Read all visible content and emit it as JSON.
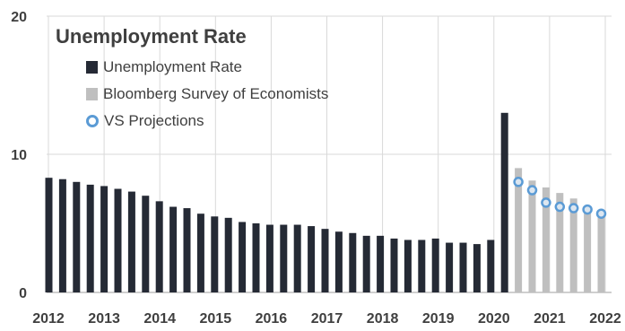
{
  "colors": {
    "unemployment": "#252a35",
    "bloomberg": "#bfbfbf",
    "projection_fill": "#dce6f0",
    "projection_stroke": "#5b9bd5",
    "grid": "#d9d9d9"
  },
  "chart_data": {
    "type": "bar",
    "title": "Unemployment Rate",
    "xlabel": "",
    "ylabel": "",
    "ylim": [
      0,
      20
    ],
    "yticks": [
      "0",
      "10",
      "20"
    ],
    "xlim": [
      2012,
      2022
    ],
    "xticks": [
      "2012",
      "2013",
      "2014",
      "2015",
      "2016",
      "2017",
      "2018",
      "2019",
      "2020",
      "2021",
      "2022"
    ],
    "grid": true,
    "legend_position": "top-left",
    "legend": [
      {
        "label": "Unemployment Rate",
        "marker": "bar",
        "color_key": "unemployment"
      },
      {
        "label": "Bloomberg Survey of Economists",
        "marker": "bar",
        "color_key": "bloomberg"
      },
      {
        "label": "VS Projections",
        "marker": "circle",
        "color_key": "projection_stroke"
      }
    ],
    "series": [
      {
        "name": "Unemployment Rate",
        "marker": "bar",
        "x": [
          "2012 Q1",
          "2012 Q2",
          "2012 Q3",
          "2012 Q4",
          "2013 Q1",
          "2013 Q2",
          "2013 Q3",
          "2013 Q4",
          "2014 Q1",
          "2014 Q2",
          "2014 Q3",
          "2014 Q4",
          "2015 Q1",
          "2015 Q2",
          "2015 Q3",
          "2015 Q4",
          "2016 Q1",
          "2016 Q2",
          "2016 Q3",
          "2016 Q4",
          "2017 Q1",
          "2017 Q2",
          "2017 Q3",
          "2017 Q4",
          "2018 Q1",
          "2018 Q2",
          "2018 Q3",
          "2018 Q4",
          "2019 Q1",
          "2019 Q2",
          "2019 Q3",
          "2019 Q4",
          "2020 Q1",
          "2020 Q2"
        ],
        "values": [
          8.3,
          8.2,
          8.0,
          7.8,
          7.7,
          7.5,
          7.3,
          7.0,
          6.6,
          6.2,
          6.1,
          5.7,
          5.5,
          5.4,
          5.1,
          5.0,
          4.9,
          4.9,
          4.9,
          4.8,
          4.6,
          4.4,
          4.3,
          4.1,
          4.1,
          3.9,
          3.8,
          3.8,
          3.9,
          3.6,
          3.6,
          3.5,
          3.8,
          13.0
        ]
      },
      {
        "name": "Bloomberg Survey of Economists",
        "marker": "bar",
        "x": [
          "2020 Q3",
          "2020 Q4",
          "2021 Q1",
          "2021 Q2",
          "2021 Q3",
          "2021 Q4",
          "2022 Q1"
        ],
        "values": [
          9.0,
          8.1,
          7.6,
          7.2,
          6.8,
          6.2,
          5.9
        ]
      },
      {
        "name": "VS Projections",
        "marker": "circle",
        "x": [
          "2020 Q3",
          "2020 Q4",
          "2021 Q1",
          "2021 Q2",
          "2021 Q3",
          "2021 Q4",
          "2022 Q1"
        ],
        "values": [
          8.0,
          7.4,
          6.5,
          6.2,
          6.1,
          6.0,
          5.7
        ]
      }
    ]
  }
}
